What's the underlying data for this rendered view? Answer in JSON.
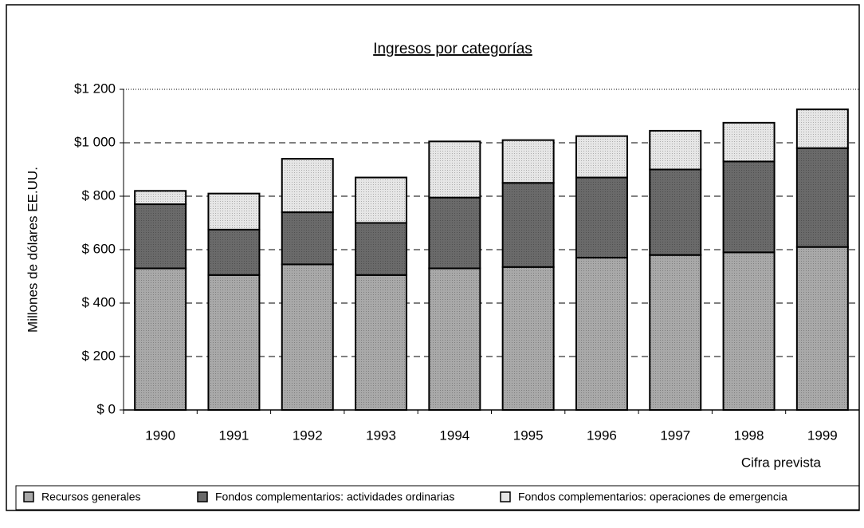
{
  "chart_data": {
    "type": "bar",
    "stacked": true,
    "title": "Ingresos por categorías",
    "y_label": "Millones de dólares EE.UU.",
    "annotation": "Cifra prevista",
    "categories": [
      "1990",
      "1991",
      "1992",
      "1993",
      "1994",
      "1995",
      "1996",
      "1997",
      "1998",
      "1999"
    ],
    "series": [
      {
        "name": "Recursos generales",
        "color": "#a9a9a9",
        "values": [
          530,
          505,
          545,
          505,
          530,
          535,
          570,
          580,
          590,
          610
        ]
      },
      {
        "name": "Fondos complementarios:  actividades ordinarias",
        "color": "#6a6a6a",
        "values": [
          240,
          170,
          195,
          195,
          265,
          315,
          300,
          320,
          340,
          370
        ]
      },
      {
        "name": "Fondos complementarios:  operaciones de emergencia",
        "color": "#e6e6e6",
        "values": [
          50,
          135,
          200,
          170,
          210,
          160,
          155,
          145,
          145,
          145
        ]
      }
    ],
    "ylim": [
      0,
      1200
    ],
    "yticks": [
      {
        "value": 0,
        "label": "$ 0"
      },
      {
        "value": 200,
        "label": "$ 200"
      },
      {
        "value": 400,
        "label": "$ 400"
      },
      {
        "value": 600,
        "label": "$ 600"
      },
      {
        "value": 800,
        "label": "$ 800"
      },
      {
        "value": 1000,
        "label": "$1 000"
      },
      {
        "value": 1200,
        "label": "$1 200"
      }
    ],
    "grid": true,
    "legend": "bottom"
  }
}
